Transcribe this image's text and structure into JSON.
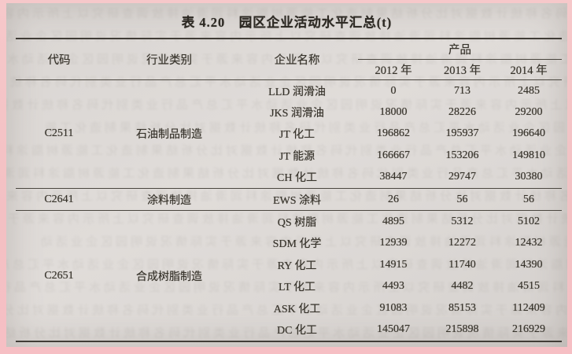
{
  "page": {
    "title": "表 4.20　园区企业活动水平汇总(t)"
  },
  "table": {
    "headers": {
      "code": "代码",
      "industry": "行业类别",
      "enterprise": "企业名称",
      "product_group": "产品",
      "years": [
        "2012 年",
        "2013 年",
        "2014 年"
      ]
    },
    "groups": [
      {
        "code": "C2511",
        "industry": "石油制品制造",
        "rows": [
          {
            "enterprise": "LLD 润滑油",
            "values": [
              "0",
              "713",
              "2485"
            ]
          },
          {
            "enterprise": "JKS 润滑油",
            "values": [
              "18000",
              "28226",
              "29200"
            ]
          },
          {
            "enterprise": "JT 化工",
            "values": [
              "196862",
              "195937",
              "196640"
            ]
          },
          {
            "enterprise": "JT 能源",
            "values": [
              "166667",
              "153206",
              "149810"
            ]
          },
          {
            "enterprise": "CH 化工",
            "values": [
              "38447",
              "29747",
              "30380"
            ]
          }
        ]
      },
      {
        "code": "C2641",
        "industry": "涂料制造",
        "rows": [
          {
            "enterprise": "EWS 涂料",
            "values": [
              "26",
              "56",
              "56"
            ]
          }
        ]
      },
      {
        "code": "C2651",
        "industry": "合成树脂制造",
        "rows": [
          {
            "enterprise": "QS 树脂",
            "values": [
              "4895",
              "5312",
              "5102"
            ]
          },
          {
            "enterprise": "SDM 化学",
            "values": [
              "12939",
              "12272",
              "12432"
            ]
          },
          {
            "enterprise": "RY 化工",
            "values": [
              "14915",
              "11740",
              "14390"
            ]
          },
          {
            "enterprise": "LT 化工",
            "values": [
              "4493",
              "4482",
              "4515"
            ]
          },
          {
            "enterprise": "ASK 化工",
            "values": [
              "91083",
              "85153",
              "112409"
            ]
          },
          {
            "enterprise": "DC 化工",
            "values": [
              "145047",
              "215898",
              "216929"
            ]
          }
        ]
      }
    ]
  },
  "colors": {
    "edge_pink": "#f4c3c5",
    "paper": "#dcd8d5",
    "ink": "#38342c",
    "rule": "#4a463f"
  },
  "noise": {
    "glyphs": "园区企业活动水平汇总产品行业类别代码名称统计数据对比分析结果制造化工能源树脂涂料润滑油排放调查研究以上所示内容来源于实际情况说明",
    "line_count": 15
  }
}
